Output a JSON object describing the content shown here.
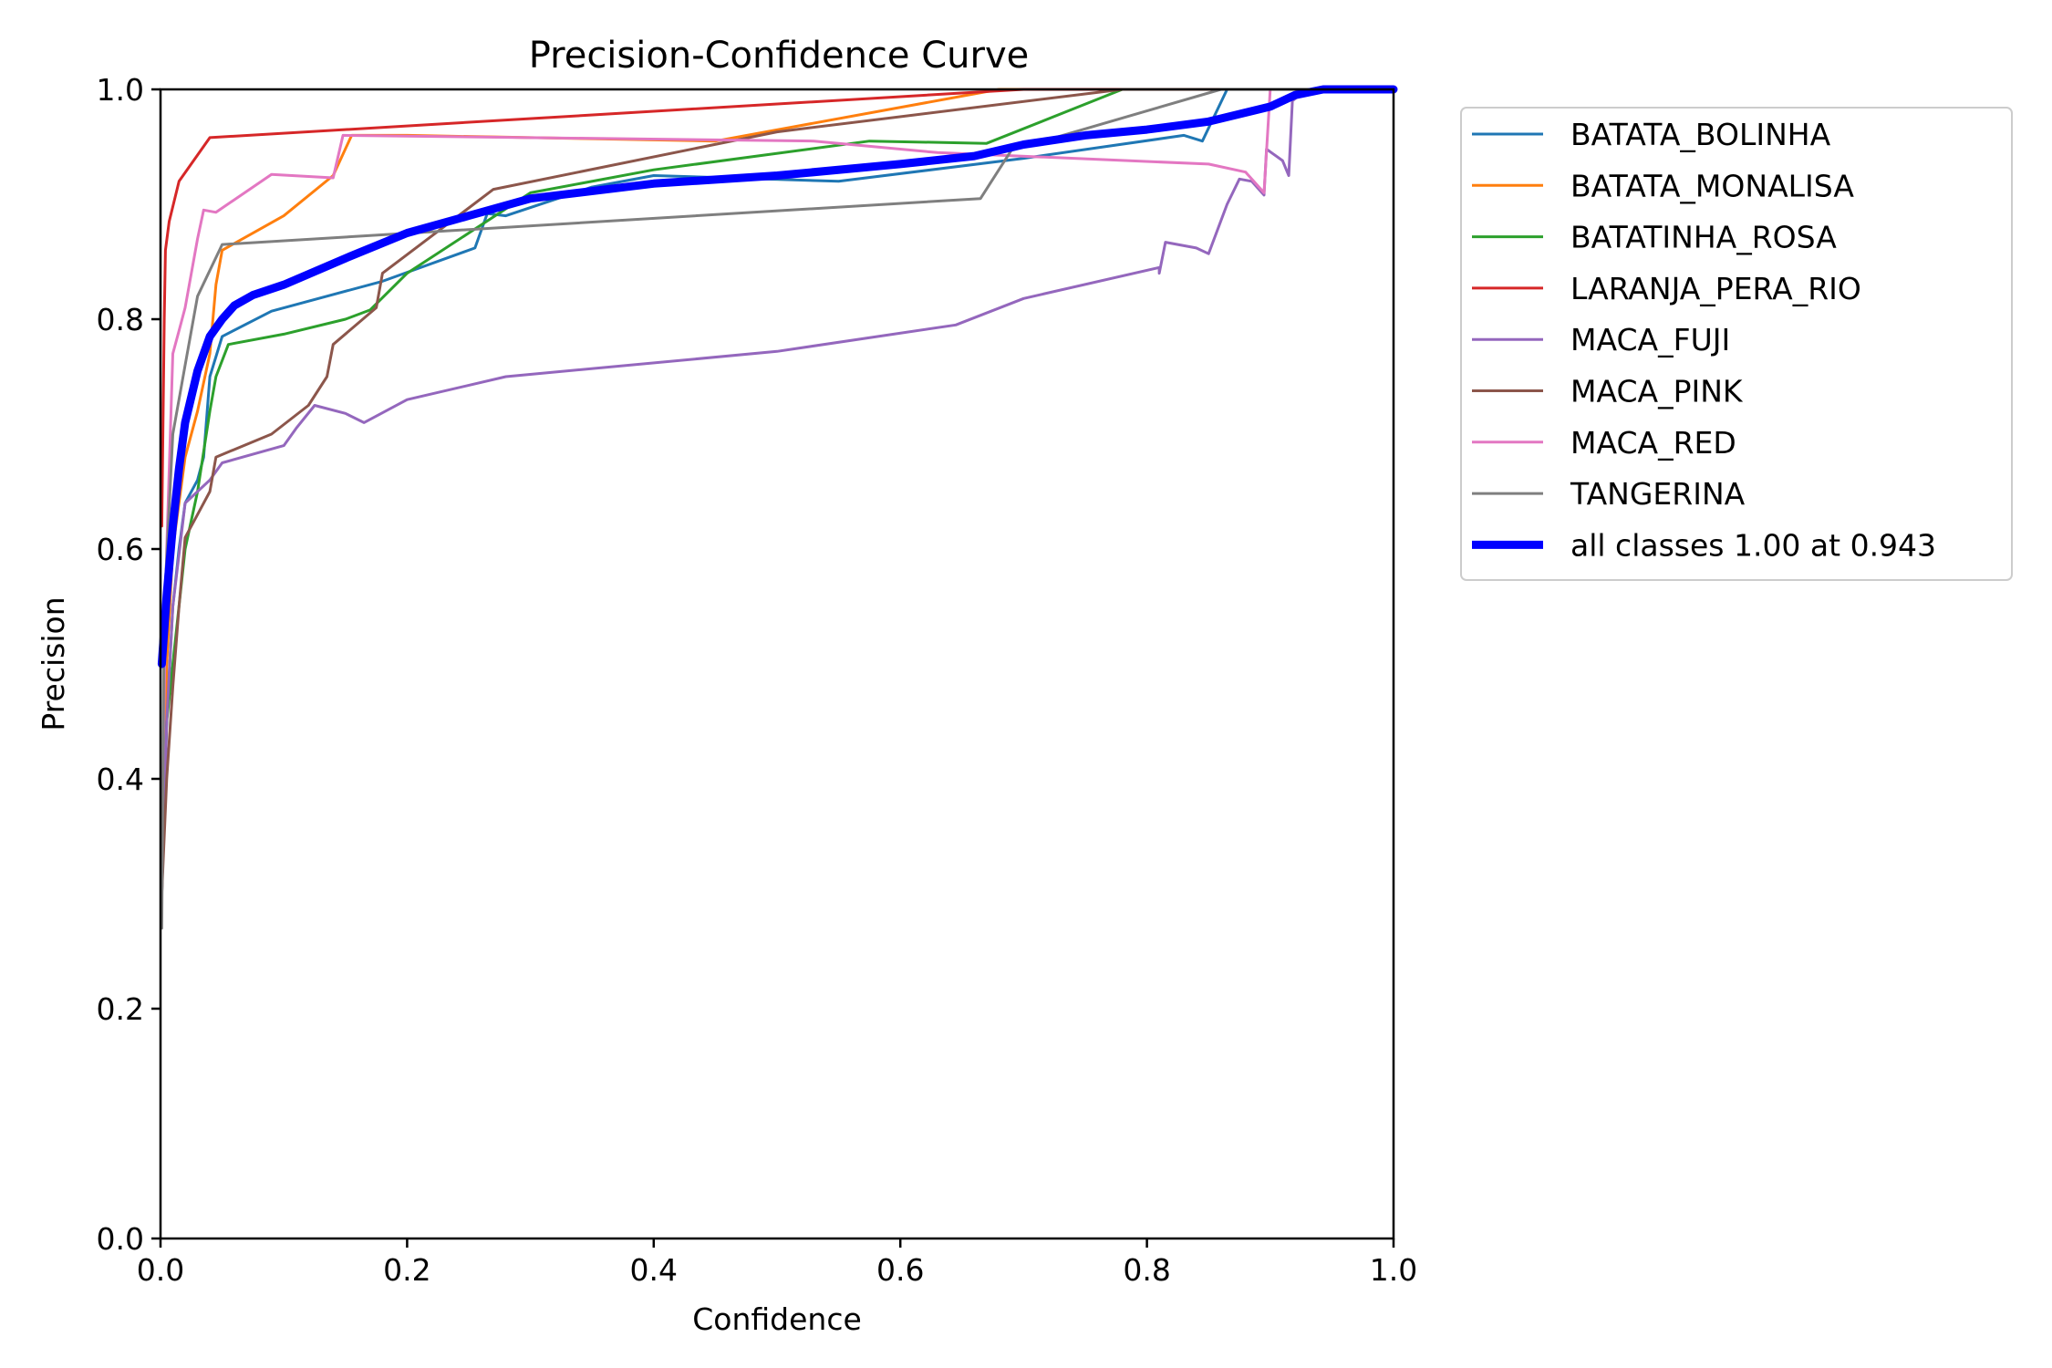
{
  "chart_data": {
    "type": "line",
    "title": "Precision-Confidence Curve",
    "xlabel": "Confidence",
    "ylabel": "Precision",
    "xlim": [
      0,
      1
    ],
    "ylim": [
      0,
      1
    ],
    "xticks": [
      "0.0",
      "0.2",
      "0.4",
      "0.6",
      "0.8",
      "1.0"
    ],
    "yticks": [
      "0.0",
      "0.2",
      "0.4",
      "0.6",
      "0.8",
      "1.0"
    ],
    "grid": false,
    "legend_position": "outside-right-top",
    "series": [
      {
        "name": "BATATA_BOLINHA",
        "color": "#1f77b4",
        "width": 1.5,
        "points": [
          [
            0.001,
            0.3
          ],
          [
            0.005,
            0.45
          ],
          [
            0.01,
            0.55
          ],
          [
            0.015,
            0.6
          ],
          [
            0.02,
            0.64
          ],
          [
            0.03,
            0.66
          ],
          [
            0.035,
            0.68
          ],
          [
            0.04,
            0.75
          ],
          [
            0.05,
            0.785
          ],
          [
            0.09,
            0.807
          ],
          [
            0.18,
            0.833
          ],
          [
            0.255,
            0.862
          ],
          [
            0.265,
            0.892
          ],
          [
            0.28,
            0.89
          ],
          [
            0.35,
            0.915
          ],
          [
            0.4,
            0.925
          ],
          [
            0.55,
            0.92
          ],
          [
            0.7,
            0.94
          ],
          [
            0.83,
            0.96
          ],
          [
            0.845,
            0.955
          ],
          [
            0.865,
            1.0
          ],
          [
            1.0,
            1.0
          ]
        ]
      },
      {
        "name": "BATATA_MONALISA",
        "color": "#ff7f0e",
        "width": 1.5,
        "points": [
          [
            0.001,
            0.3
          ],
          [
            0.005,
            0.5
          ],
          [
            0.01,
            0.6
          ],
          [
            0.02,
            0.68
          ],
          [
            0.03,
            0.72
          ],
          [
            0.04,
            0.77
          ],
          [
            0.045,
            0.83
          ],
          [
            0.05,
            0.86
          ],
          [
            0.1,
            0.89
          ],
          [
            0.14,
            0.925
          ],
          [
            0.155,
            0.96
          ],
          [
            0.2,
            0.96
          ],
          [
            0.45,
            0.955
          ],
          [
            0.68,
            1.0
          ],
          [
            1.0,
            1.0
          ]
        ]
      },
      {
        "name": "BATATINHA_ROSA",
        "color": "#2ca02c",
        "width": 1.5,
        "points": [
          [
            0.001,
            0.35
          ],
          [
            0.005,
            0.45
          ],
          [
            0.01,
            0.5
          ],
          [
            0.02,
            0.6
          ],
          [
            0.03,
            0.65
          ],
          [
            0.04,
            0.72
          ],
          [
            0.045,
            0.75
          ],
          [
            0.055,
            0.778
          ],
          [
            0.1,
            0.787
          ],
          [
            0.15,
            0.8
          ],
          [
            0.17,
            0.808
          ],
          [
            0.2,
            0.84
          ],
          [
            0.3,
            0.91
          ],
          [
            0.4,
            0.93
          ],
          [
            0.575,
            0.955
          ],
          [
            0.67,
            0.953
          ],
          [
            0.78,
            1.0
          ],
          [
            1.0,
            1.0
          ]
        ]
      },
      {
        "name": "LARANJA_PERA_RIO",
        "color": "#d62728",
        "width": 1.5,
        "points": [
          [
            0.001,
            0.62
          ],
          [
            0.003,
            0.8
          ],
          [
            0.004,
            0.86
          ],
          [
            0.007,
            0.885
          ],
          [
            0.015,
            0.92
          ],
          [
            0.04,
            0.958
          ],
          [
            0.7,
            1.0
          ],
          [
            1.0,
            1.0
          ]
        ]
      },
      {
        "name": "MACA_FUJI",
        "color": "#9467bd",
        "width": 1.5,
        "points": [
          [
            0.001,
            0.3
          ],
          [
            0.005,
            0.45
          ],
          [
            0.01,
            0.55
          ],
          [
            0.02,
            0.64
          ],
          [
            0.04,
            0.66
          ],
          [
            0.05,
            0.675
          ],
          [
            0.1,
            0.69
          ],
          [
            0.11,
            0.705
          ],
          [
            0.125,
            0.725
          ],
          [
            0.15,
            0.718
          ],
          [
            0.165,
            0.71
          ],
          [
            0.2,
            0.73
          ],
          [
            0.28,
            0.75
          ],
          [
            0.5,
            0.772
          ],
          [
            0.645,
            0.795
          ],
          [
            0.7,
            0.818
          ],
          [
            0.81,
            0.845
          ],
          [
            0.81,
            0.84
          ],
          [
            0.815,
            0.867
          ],
          [
            0.84,
            0.862
          ],
          [
            0.85,
            0.857
          ],
          [
            0.865,
            0.9
          ],
          [
            0.875,
            0.922
          ],
          [
            0.885,
            0.92
          ],
          [
            0.895,
            0.908
          ],
          [
            0.897,
            0.948
          ],
          [
            0.91,
            0.938
          ],
          [
            0.915,
            0.925
          ],
          [
            0.918,
            0.99
          ],
          [
            0.93,
            1.0
          ],
          [
            1.0,
            1.0
          ]
        ]
      },
      {
        "name": "MACA_PINK",
        "color": "#8c564b",
        "width": 1.5,
        "points": [
          [
            0.001,
            0.3
          ],
          [
            0.005,
            0.4
          ],
          [
            0.01,
            0.48
          ],
          [
            0.015,
            0.55
          ],
          [
            0.02,
            0.61
          ],
          [
            0.03,
            0.63
          ],
          [
            0.04,
            0.65
          ],
          [
            0.045,
            0.68
          ],
          [
            0.09,
            0.7
          ],
          [
            0.12,
            0.725
          ],
          [
            0.135,
            0.75
          ],
          [
            0.14,
            0.778
          ],
          [
            0.175,
            0.81
          ],
          [
            0.18,
            0.84
          ],
          [
            0.27,
            0.913
          ],
          [
            0.5,
            0.963
          ],
          [
            0.78,
            1.0
          ],
          [
            1.0,
            1.0
          ]
        ]
      },
      {
        "name": "MACA_RED",
        "color": "#e377c2",
        "width": 1.5,
        "points": [
          [
            0.001,
            0.35
          ],
          [
            0.005,
            0.6
          ],
          [
            0.01,
            0.77
          ],
          [
            0.015,
            0.79
          ],
          [
            0.02,
            0.81
          ],
          [
            0.025,
            0.84
          ],
          [
            0.03,
            0.87
          ],
          [
            0.035,
            0.895
          ],
          [
            0.045,
            0.893
          ],
          [
            0.09,
            0.926
          ],
          [
            0.14,
            0.923
          ],
          [
            0.148,
            0.96
          ],
          [
            0.53,
            0.955
          ],
          [
            0.63,
            0.945
          ],
          [
            0.85,
            0.935
          ],
          [
            0.88,
            0.928
          ],
          [
            0.895,
            0.91
          ],
          [
            0.9,
            1.0
          ],
          [
            1.0,
            1.0
          ]
        ]
      },
      {
        "name": "TANGERINA",
        "color": "#7f7f7f",
        "width": 1.5,
        "points": [
          [
            0.001,
            0.27
          ],
          [
            0.003,
            0.55
          ],
          [
            0.01,
            0.7
          ],
          [
            0.02,
            0.76
          ],
          [
            0.03,
            0.82
          ],
          [
            0.05,
            0.865
          ],
          [
            0.665,
            0.905
          ],
          [
            0.69,
            0.947
          ],
          [
            0.86,
            1.0
          ],
          [
            1.0,
            1.0
          ]
        ]
      },
      {
        "name": "all classes 1.00 at 0.943",
        "color": "#0000ff",
        "width": 4.5,
        "points": [
          [
            0.001,
            0.5
          ],
          [
            0.005,
            0.56
          ],
          [
            0.01,
            0.62
          ],
          [
            0.015,
            0.67
          ],
          [
            0.02,
            0.71
          ],
          [
            0.03,
            0.755
          ],
          [
            0.04,
            0.785
          ],
          [
            0.05,
            0.8
          ],
          [
            0.06,
            0.812
          ],
          [
            0.075,
            0.821
          ],
          [
            0.1,
            0.83
          ],
          [
            0.15,
            0.853
          ],
          [
            0.2,
            0.875
          ],
          [
            0.25,
            0.89
          ],
          [
            0.3,
            0.905
          ],
          [
            0.4,
            0.918
          ],
          [
            0.5,
            0.925
          ],
          [
            0.6,
            0.935
          ],
          [
            0.66,
            0.942
          ],
          [
            0.7,
            0.952
          ],
          [
            0.75,
            0.96
          ],
          [
            0.8,
            0.965
          ],
          [
            0.85,
            0.972
          ],
          [
            0.9,
            0.985
          ],
          [
            0.92,
            0.995
          ],
          [
            0.943,
            1.0
          ],
          [
            1.0,
            1.0
          ]
        ]
      }
    ]
  }
}
